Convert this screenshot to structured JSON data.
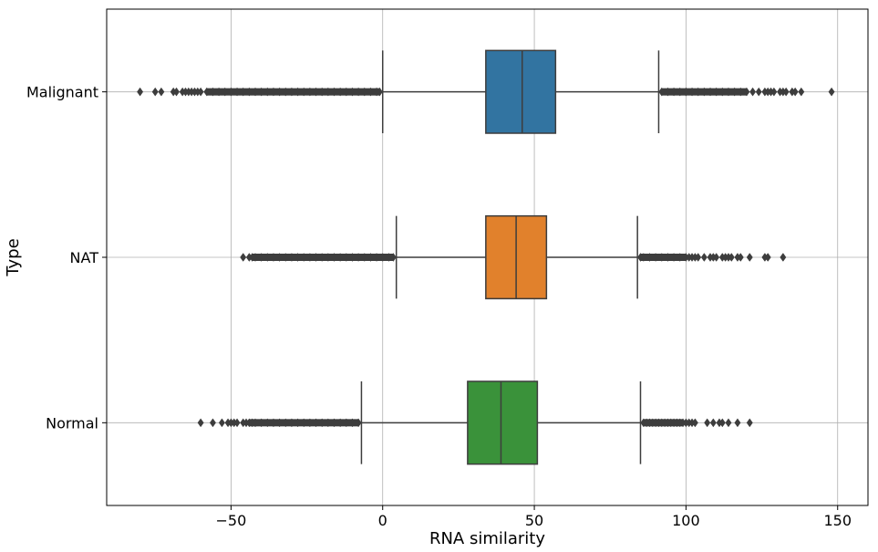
{
  "chart_data": {
    "type": "boxplot",
    "orientation": "horizontal",
    "title": "",
    "xlabel": "RNA similarity",
    "ylabel": "Type",
    "xlim": [
      -91,
      160
    ],
    "xticks": [
      -50,
      0,
      50,
      100,
      150
    ],
    "xtick_labels": [
      "−50",
      "0",
      "50",
      "100",
      "150"
    ],
    "grid": true,
    "categories": [
      "Malignant",
      "NAT",
      "Normal"
    ],
    "colors": [
      "#3274a1",
      "#e1812c",
      "#3a923a"
    ],
    "series": [
      {
        "category": "Malignant",
        "whisker_low": 0,
        "q1": 34,
        "median": 46,
        "q3": 57,
        "whisker_high": 91,
        "outliers_low": [
          -80,
          -75,
          -73,
          -69,
          -68,
          -66,
          -65,
          -64,
          -63,
          -62,
          -61,
          -60,
          -58,
          -56,
          -54,
          -52,
          -50,
          -48,
          -46,
          -44,
          -42,
          -40,
          -38,
          -36,
          -34,
          -32,
          -30,
          -28,
          -26,
          -24,
          -22,
          -20,
          -18,
          -16,
          -14,
          -12,
          -10,
          -8,
          -6,
          -4,
          -2,
          -1
        ],
        "outliers_high": [
          92,
          94,
          96,
          98,
          100,
          102,
          104,
          106,
          108,
          110,
          112,
          114,
          116,
          118,
          120,
          122,
          124,
          126,
          127,
          128,
          129,
          131,
          132,
          133,
          135,
          136,
          138,
          148
        ]
      },
      {
        "category": "NAT",
        "whisker_low": 4.5,
        "q1": 34,
        "median": 44,
        "q3": 54,
        "whisker_high": 84,
        "outliers_low": [
          -46,
          -44,
          -43,
          -42,
          -40,
          -38,
          -36,
          -34,
          -32,
          -30,
          -28,
          -26,
          -24,
          -22,
          -20,
          -18,
          -16,
          -14,
          -12,
          -10,
          -8,
          -6,
          -4,
          -2,
          0,
          2,
          3.5
        ],
        "outliers_high": [
          85,
          86,
          88,
          90,
          92,
          94,
          96,
          98,
          100,
          101,
          102,
          103,
          104,
          106,
          108,
          109,
          110,
          112,
          113,
          114,
          115,
          117,
          118,
          121,
          126,
          127,
          132
        ]
      },
      {
        "category": "Normal",
        "whisker_low": -7,
        "q1": 28,
        "median": 39,
        "q3": 51,
        "whisker_high": 85,
        "outliers_low": [
          -60,
          -56,
          -53,
          -51,
          -50,
          -49,
          -48,
          -46,
          -45,
          -44,
          -43,
          -42,
          -40,
          -38,
          -36,
          -34,
          -32,
          -30,
          -28,
          -26,
          -24,
          -22,
          -20,
          -18,
          -16,
          -14,
          -12,
          -10,
          -8
        ],
        "outliers_high": [
          86,
          87,
          88,
          89,
          90,
          91,
          92,
          93,
          94,
          95,
          96,
          97,
          98,
          99,
          100,
          101,
          102,
          103,
          107,
          109,
          111,
          112,
          114,
          117,
          121
        ]
      }
    ]
  }
}
